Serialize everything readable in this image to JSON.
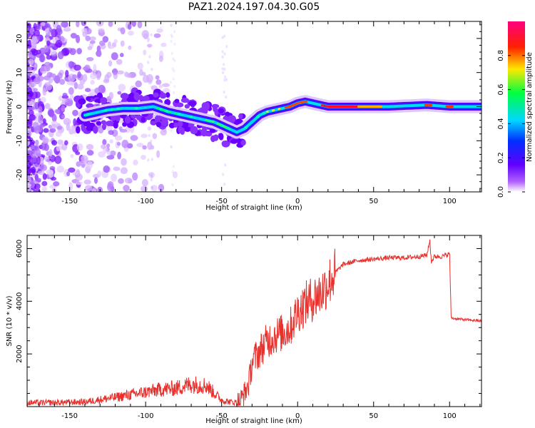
{
  "title": "PAZ1.2024.197.04.30.G05",
  "chart_data": [
    {
      "type": "heatmap",
      "xlabel": "Height of straight line (km)",
      "ylabel": "Frequency (Hz)",
      "xlim": [
        -178,
        121
      ],
      "ylim": [
        -25,
        25
      ],
      "xticks": [
        -150,
        -100,
        -50,
        0,
        50,
        100
      ],
      "yticks": [
        -20,
        -10,
        0,
        10,
        20
      ],
      "colorbar": {
        "label": "Normalized spectral amplitude",
        "range": [
          0,
          1
        ],
        "ticks": [
          0.0,
          0.2,
          0.4,
          0.6,
          0.8
        ],
        "tick_labels": [
          "0.0",
          "0.2",
          "0.4",
          "0.6",
          "0.8"
        ],
        "colormap": "gist_rainbow_r",
        "placement": "right"
      },
      "ridge": {
        "x": [
          -140,
          -125,
          -115,
          -105,
          -95,
          -85,
          -75,
          -65,
          -55,
          -45,
          -40,
          -35,
          -30,
          -25,
          -20,
          -15,
          -10,
          -5,
          0,
          5,
          10,
          15,
          20,
          40,
          60,
          85,
          100,
          121
        ],
        "y": [
          -2.5,
          -1,
          -0.5,
          -0.5,
          0,
          -1.5,
          -2.5,
          -3.5,
          -4.5,
          -6.5,
          -7.5,
          -6.5,
          -4.5,
          -2.5,
          -1.5,
          -1,
          -0.5,
          0,
          1,
          1.5,
          1,
          0.5,
          0,
          0,
          0,
          0.5,
          0,
          0
        ]
      },
      "noise_region_x": [
        -178,
        -80
      ],
      "grid": false
    },
    {
      "type": "line",
      "xlabel": "Height of straight line (km)",
      "ylabel": "SNR (10 * v/v)",
      "xlim": [
        -178,
        121
      ],
      "ylim": [
        0,
        6500
      ],
      "xticks": [
        -150,
        -100,
        -50,
        0,
        50,
        100
      ],
      "yticks": [
        2000,
        4000,
        6000
      ],
      "color": "#e8302c",
      "grid": false,
      "series": [
        {
          "x": [
            -178,
            -160,
            -140,
            -120,
            -100,
            -90,
            -80,
            -70,
            -60,
            -50,
            -45,
            -40,
            -38,
            -35,
            -32,
            -30,
            -25,
            -20,
            -15,
            -10,
            -5,
            0,
            5,
            10,
            15,
            20,
            25,
            30,
            40,
            50,
            60,
            70,
            80,
            85,
            87,
            88,
            90,
            95,
            100,
            101,
            102,
            110,
            121
          ],
          "values": [
            150,
            150,
            180,
            350,
            550,
            650,
            700,
            850,
            800,
            250,
            180,
            160,
            200,
            500,
            900,
            1700,
            2100,
            2500,
            2700,
            2800,
            3000,
            3600,
            3900,
            4100,
            4300,
            4700,
            5100,
            5400,
            5550,
            5600,
            5650,
            5650,
            5700,
            5750,
            6300,
            5500,
            5700,
            5700,
            5800,
            3400,
            3350,
            3300,
            3250
          ]
        }
      ]
    }
  ]
}
